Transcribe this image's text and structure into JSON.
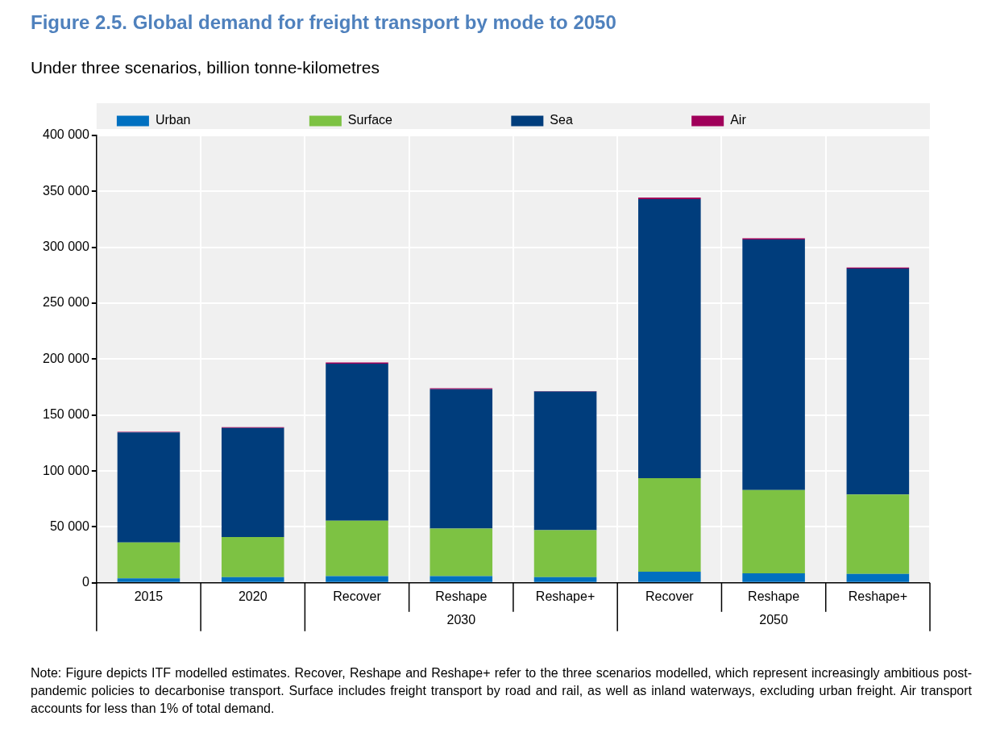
{
  "chart_data": {
    "type": "bar",
    "title": "Figure 2.5. Global demand for freight transport by mode to 2050",
    "subtitle": "Under three scenarios, billion tonne-kilometres",
    "categories": [
      "2015",
      "2020",
      "Recover",
      "Reshape",
      "Reshape+",
      "Recover",
      "Reshape",
      "Reshape+"
    ],
    "series": [
      {
        "name": "Urban",
        "color": "#0070c0",
        "values": [
          4000,
          5000,
          6000,
          6000,
          5000,
          10000,
          8500,
          8000
        ]
      },
      {
        "name": "Surface",
        "color": "#7dc243",
        "values": [
          32000,
          36000,
          49500,
          42500,
          42000,
          83500,
          74500,
          71000
        ]
      },
      {
        "name": "Sea",
        "color": "#003d7c",
        "values": [
          98500,
          97500,
          140500,
          124500,
          124000,
          249500,
          224000,
          202000
        ]
      },
      {
        "name": "Air",
        "color": "#a0005a",
        "values": [
          600,
          700,
          1000,
          1000,
          500,
          1500,
          1000,
          1000
        ]
      }
    ],
    "stacked": true,
    "ylim": [
      0,
      400000
    ],
    "yticks": [
      0,
      50000,
      100000,
      150000,
      200000,
      250000,
      300000,
      350000,
      400000
    ],
    "grid": true,
    "legend": "top",
    "annotations": [
      "2030",
      "2050",
      "Note: Figure depicts ITF modelled estimates. Recover, Reshape and Reshape+ refer to the three scenarios modelled, which represent increasingly ambitious post-pandemic policies to decarbonise transport. Surface includes freight transport by road and rail, as well as inland waterways, excluding urban freight. Air transport accounts for less than 1% of total demand."
    ]
  }
}
